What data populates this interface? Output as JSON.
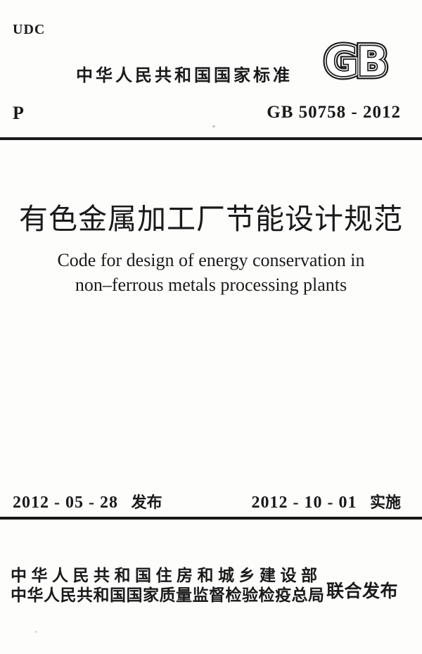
{
  "page": {
    "udc": "UDC",
    "classification_code": "P",
    "header": "中华人民共和国国家标准",
    "logo_text": "GB",
    "standard_number": "GB 50758 - 2012",
    "title_zh": "有色金属加工厂节能设计规范",
    "title_en_line1": "Code for design of energy conservation in",
    "title_en_line2": "non–ferrous metals processing plants",
    "issue_date": "2012 - 05 - 28",
    "issue_label": "发布",
    "implement_date": "2012 - 10 - 01",
    "implement_label": "实施",
    "publishers": [
      "中华人民共和国住房和城乡建设部",
      "中华人民共和国国家质量监督检验检疫总局"
    ],
    "joint_publish_label": "联合发布",
    "colors": {
      "ink": "#1a1a1a",
      "paper": "#fdfdfc"
    }
  }
}
